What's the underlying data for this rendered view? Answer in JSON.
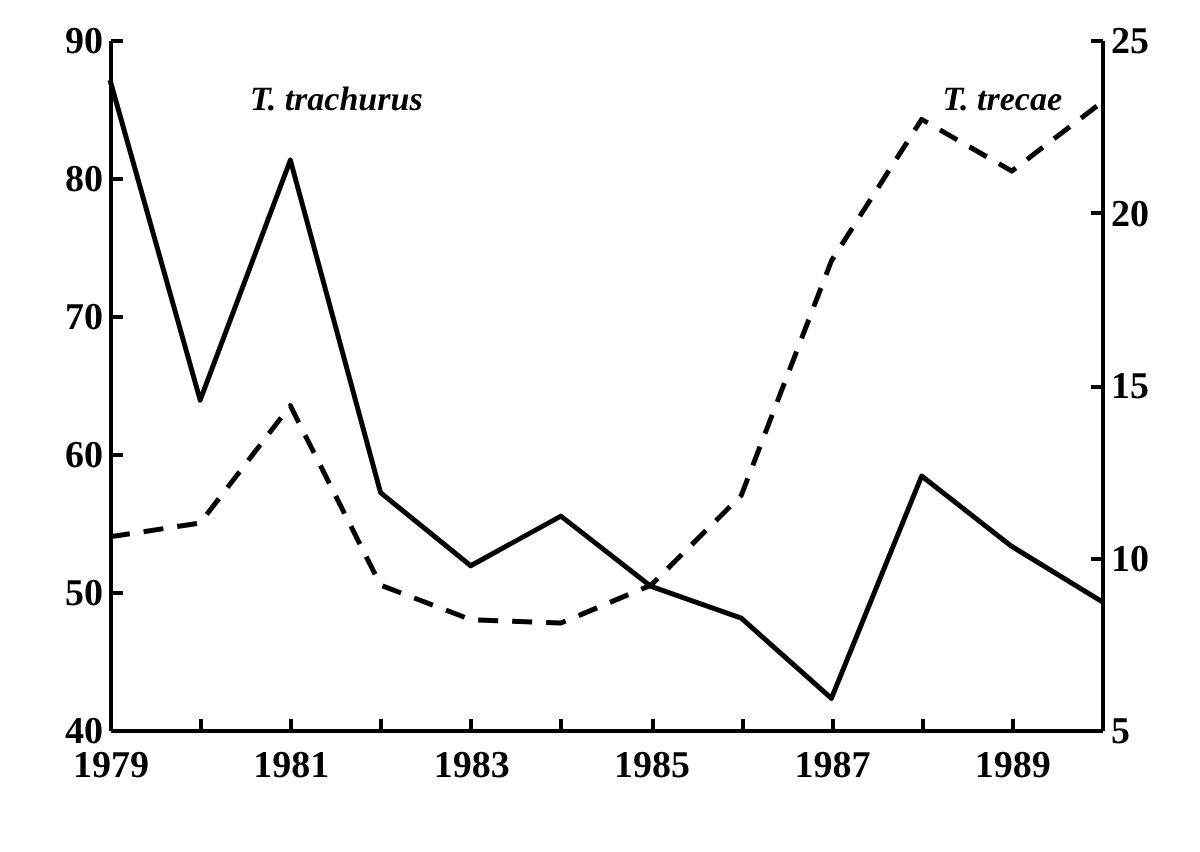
{
  "chart_data": {
    "type": "line",
    "x": [
      1979,
      1980,
      1981,
      1982,
      1983,
      1984,
      1985,
      1986,
      1987,
      1988,
      1989,
      1990
    ],
    "xlim": [
      1979,
      1990
    ],
    "xticks": [
      1979,
      {
        "value": 1980,
        "label": null
      },
      1981,
      {
        "value": 1982,
        "label": null
      },
      1983,
      {
        "value": 1984,
        "label": null
      },
      1985,
      {
        "value": 1986,
        "label": null
      },
      1987,
      {
        "value": 1988,
        "label": null
      },
      1989,
      {
        "value": 1990,
        "label": null
      }
    ],
    "ylim": [
      40,
      90
    ],
    "yticks": [
      40,
      50,
      60,
      70,
      80,
      90
    ],
    "y2lim": [
      5,
      25
    ],
    "y2ticks": [
      5,
      10,
      15,
      20,
      25
    ],
    "series": [
      {
        "name": "T. trachurus",
        "color": "#000000",
        "line_style": "solid",
        "values": [
          87.1,
          63.9,
          81.3,
          57.2,
          51.9,
          55.5,
          50.4,
          48.1,
          42.3,
          58.4,
          53.3,
          49.3
        ]
      },
      {
        "name": "T. trecae",
        "color": "#000000",
        "line_style": "dashed",
        "axis": "y2",
        "values": [
          10.6,
          11.0,
          14.4,
          9.2,
          8.2,
          8.1,
          9.2,
          11.8,
          18.6,
          22.7,
          21.2,
          23.2
        ]
      }
    ],
    "grid": false,
    "marker": "none"
  }
}
